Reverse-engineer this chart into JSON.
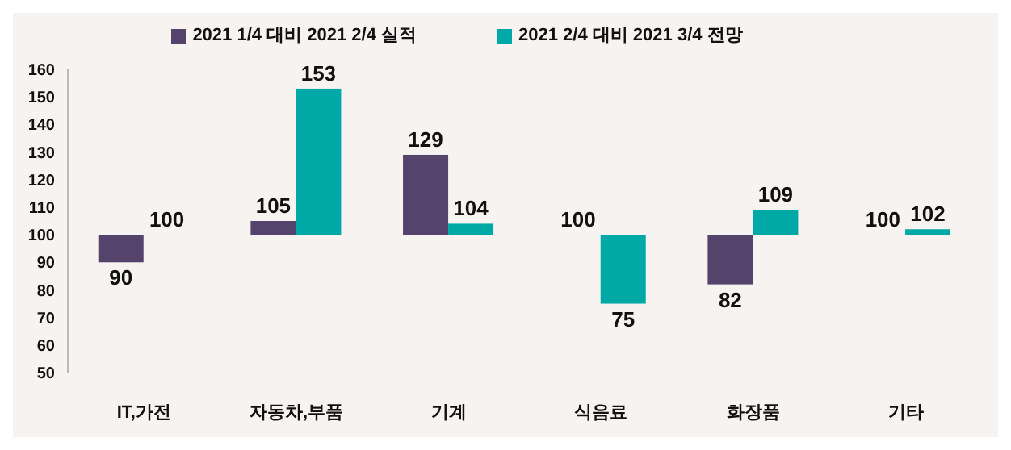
{
  "chart_data": {
    "type": "bar",
    "categories": [
      "IT,가전",
      "자동차,부품",
      "기계",
      "식음료",
      "화장품",
      "기타"
    ],
    "series": [
      {
        "name": "2021 1/4 대비 2021 2/4 실적",
        "color": "#54436b",
        "base": [
          100,
          100,
          100,
          null,
          100,
          null
        ],
        "values": [
          -10,
          5,
          29,
          null,
          -18,
          null
        ],
        "value_labels": [
          "90",
          "105",
          "129",
          null,
          "82",
          null
        ]
      },
      {
        "name": "2021 2/4 대비 2021 3/4 전망",
        "color": "#00a9a5",
        "base": [
          null,
          100,
          100,
          100,
          100,
          100
        ],
        "values": [
          null,
          53,
          4,
          -25,
          9,
          2
        ],
        "value_labels": [
          null,
          "153",
          "104",
          "75",
          "109",
          "102"
        ]
      }
    ],
    "annotations": [
      {
        "text": "100",
        "x": "IT,가전",
        "y": 100
      },
      {
        "text": "100",
        "x": "식음료",
        "y": 100
      },
      {
        "text": "100",
        "x": "기타",
        "y": 100
      }
    ],
    "ylim": [
      50,
      160
    ],
    "yticks": [
      50,
      60,
      70,
      80,
      90,
      100,
      110,
      120,
      130,
      140,
      150,
      160
    ],
    "legend": "top"
  }
}
